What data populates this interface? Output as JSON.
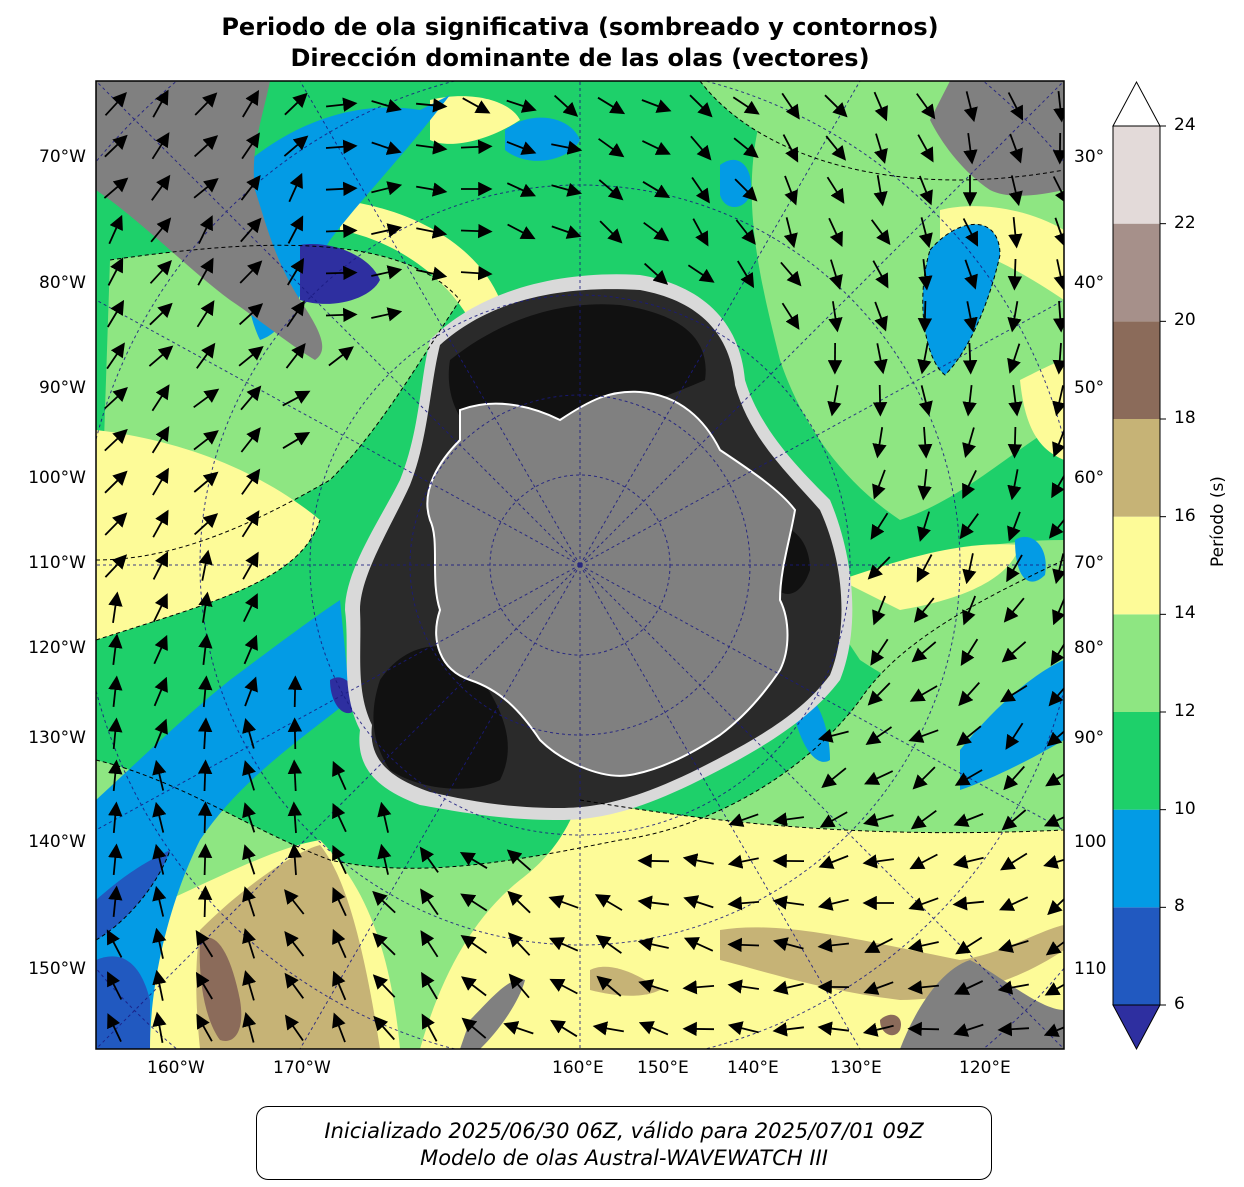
{
  "title": {
    "line1": "Periodo de ola significativa (sombreado y contornos)",
    "line2": "Dirección dominante de las olas (vectores)"
  },
  "footer": {
    "line1": "Inicializado 2025/06/30 06Z, válido para 2025/07/01 09Z",
    "line2": "Modelo de olas Austral-WAVEWATCH III"
  },
  "colorbar": {
    "label": "Período (s)",
    "ticks": [
      "6",
      "8",
      "10",
      "12",
      "14",
      "16",
      "18",
      "20",
      "22",
      "24"
    ],
    "bins": [
      {
        "min": 6,
        "max": 8,
        "color": "#2159c0"
      },
      {
        "min": 8,
        "max": 10,
        "color": "#039be5"
      },
      {
        "min": 10,
        "max": 12,
        "color": "#1ed06a"
      },
      {
        "min": 12,
        "max": 14,
        "color": "#8ee682"
      },
      {
        "min": 14,
        "max": 16,
        "color": "#fdfb98"
      },
      {
        "min": 16,
        "max": 18,
        "color": "#c6b376"
      },
      {
        "min": 18,
        "max": 20,
        "color": "#8b6b5a"
      },
      {
        "min": 20,
        "max": 22,
        "color": "#a6908a"
      },
      {
        "min": 22,
        "max": 24,
        "color": "#e3dad9"
      }
    ],
    "under_color": "#2e2fa0",
    "over_color": "#ffffff"
  },
  "left_labels": [
    "70°W",
    "80°W",
    "90°W",
    "100°W",
    "110°W",
    "120°W",
    "130°W",
    "140°W",
    "150°W"
  ],
  "right_labels": [
    "30°",
    "40°",
    "50°",
    "60°",
    "70°",
    "80°",
    "90°",
    "100",
    "110"
  ],
  "bottom_labels": [
    "160°W",
    "170°W",
    "160°E",
    "150°E",
    "140°E",
    "130°E",
    "120°E"
  ],
  "colors": {
    "land": "#808080",
    "ice_dark": "#141414",
    "ice_mid": "#333333",
    "graticule": "#1a1a80"
  }
}
